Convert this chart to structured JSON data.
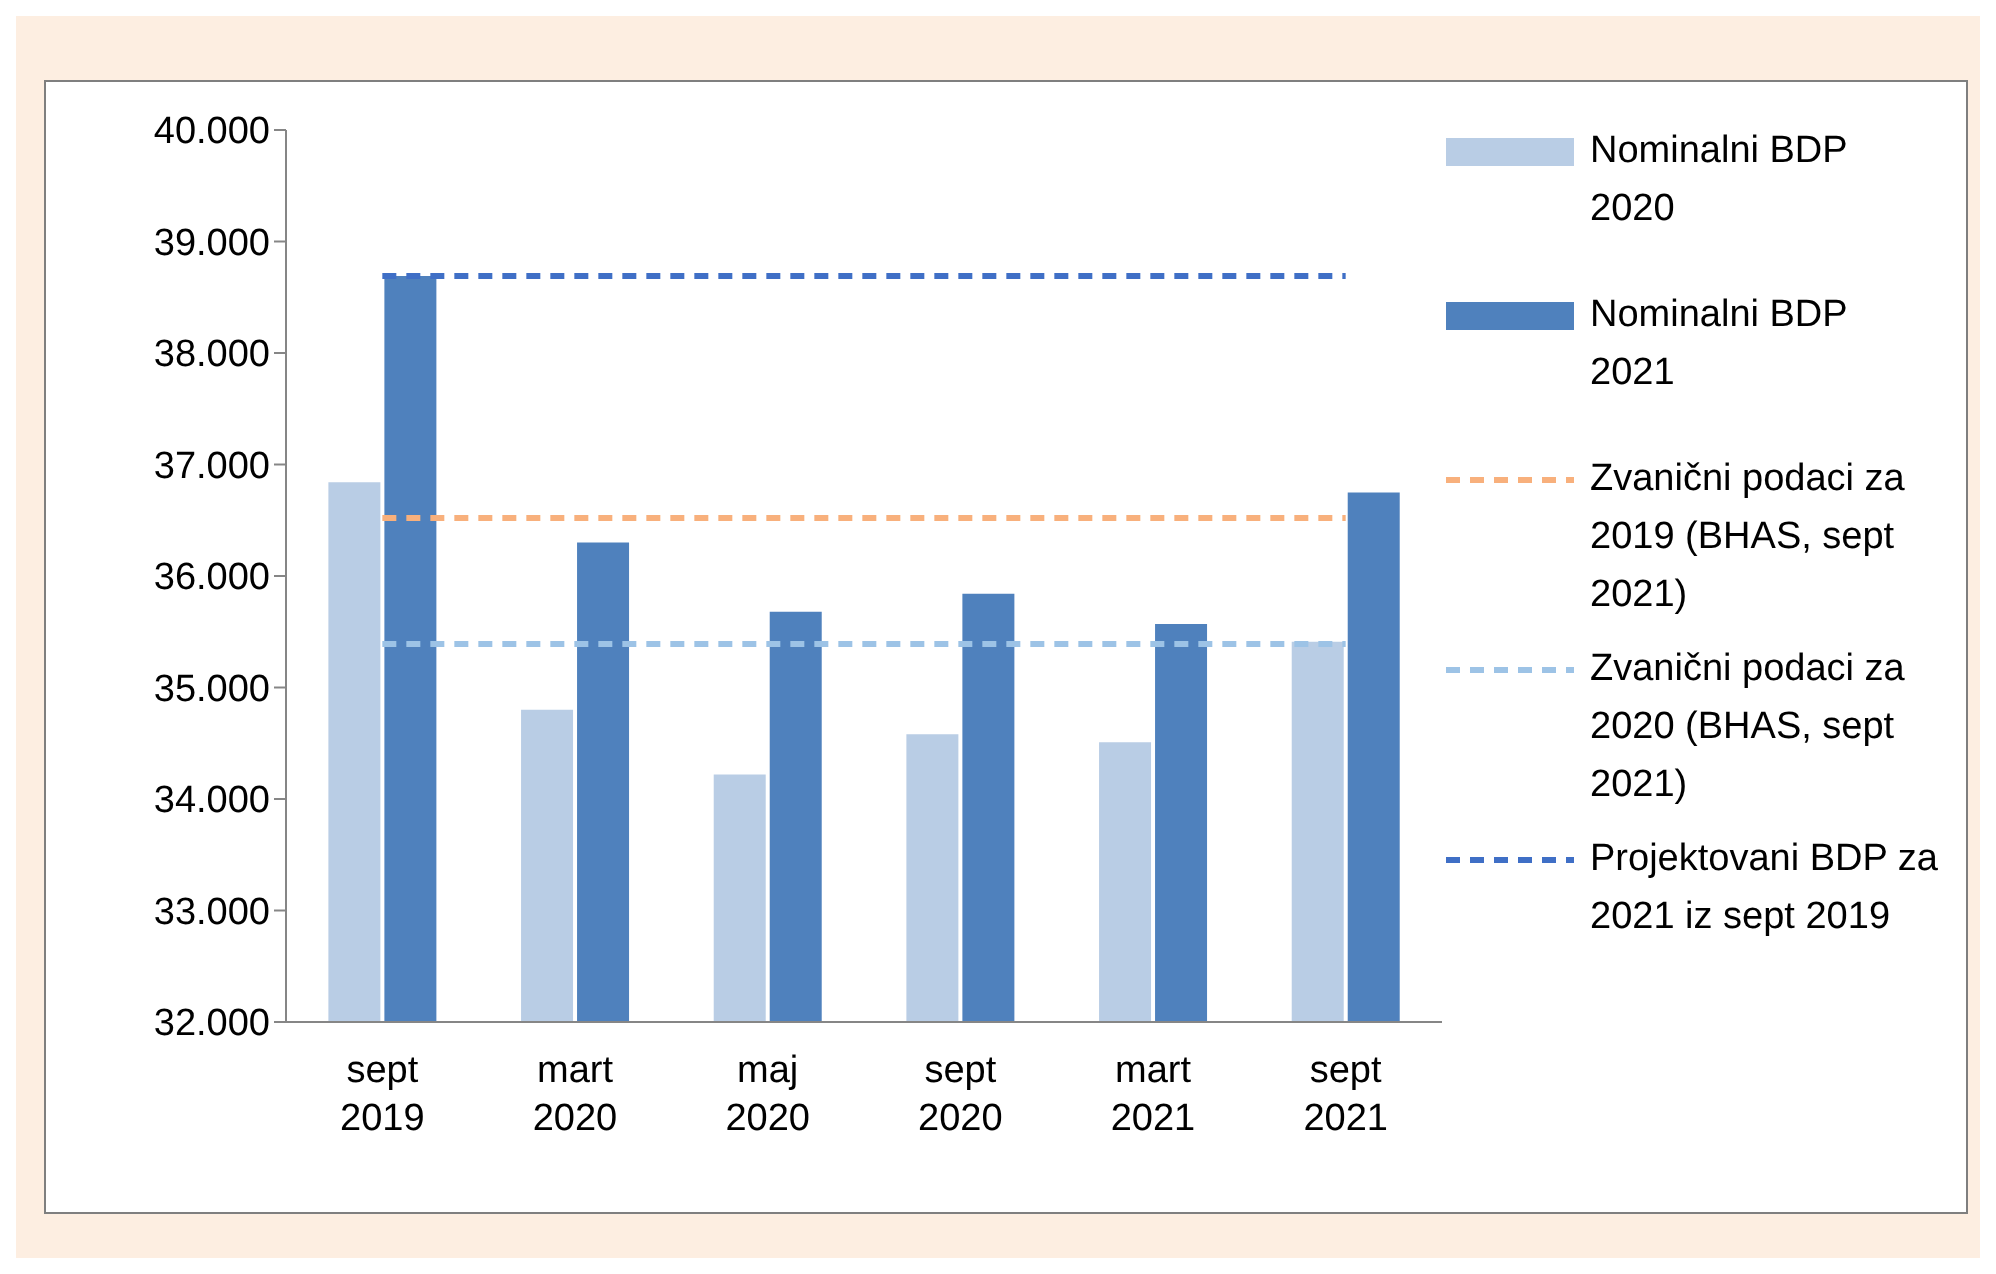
{
  "chart_data": {
    "type": "bar",
    "categories": [
      "sept 2019",
      "mart 2020",
      "maj 2020",
      "sept 2020",
      "mart 2021",
      "sept 2021"
    ],
    "series": [
      {
        "name": "Nominalni BDP 2020",
        "color": "#b9cde5",
        "values": [
          36840,
          34800,
          34220,
          34580,
          34510,
          35410
        ]
      },
      {
        "name": "Nominalni BDP 2021",
        "color": "#4f81bd",
        "values": [
          38690,
          36300,
          35680,
          35840,
          35570,
          36750
        ]
      },
      {
        "name": "Zvanični podaci za 2019 (BHAS, sept 2021)",
        "type": "line",
        "color": "#f8b07c",
        "values": [
          36520,
          36520,
          36520,
          36520,
          36520,
          36520
        ]
      },
      {
        "name": "Zvanični podaci za 2020 (BHAS, sept 2021)",
        "type": "line",
        "color": "#9dc3e6",
        "values": [
          35390,
          35390,
          35390,
          35390,
          35390,
          35390
        ]
      },
      {
        "name": "Projektovani BDP za 2021 iz sept 2019",
        "type": "line",
        "color": "#3f6fc6",
        "values": [
          38690,
          38690,
          38690,
          38690,
          38690,
          38690
        ]
      }
    ],
    "ylim": [
      32000,
      40000
    ],
    "yticks": [
      {
        "value": 32000,
        "label": "32.000"
      },
      {
        "value": 33000,
        "label": "33.000"
      },
      {
        "value": 34000,
        "label": "34.000"
      },
      {
        "value": 35000,
        "label": "35.000"
      },
      {
        "value": 36000,
        "label": "36.000"
      },
      {
        "value": 37000,
        "label": "37.000"
      },
      {
        "value": 38000,
        "label": "38.000"
      },
      {
        "value": 39000,
        "label": "39.000"
      },
      {
        "value": 40000,
        "label": "40.000"
      }
    ],
    "grid": false,
    "legend": "right",
    "line_style": "dashed",
    "marker": "none"
  }
}
